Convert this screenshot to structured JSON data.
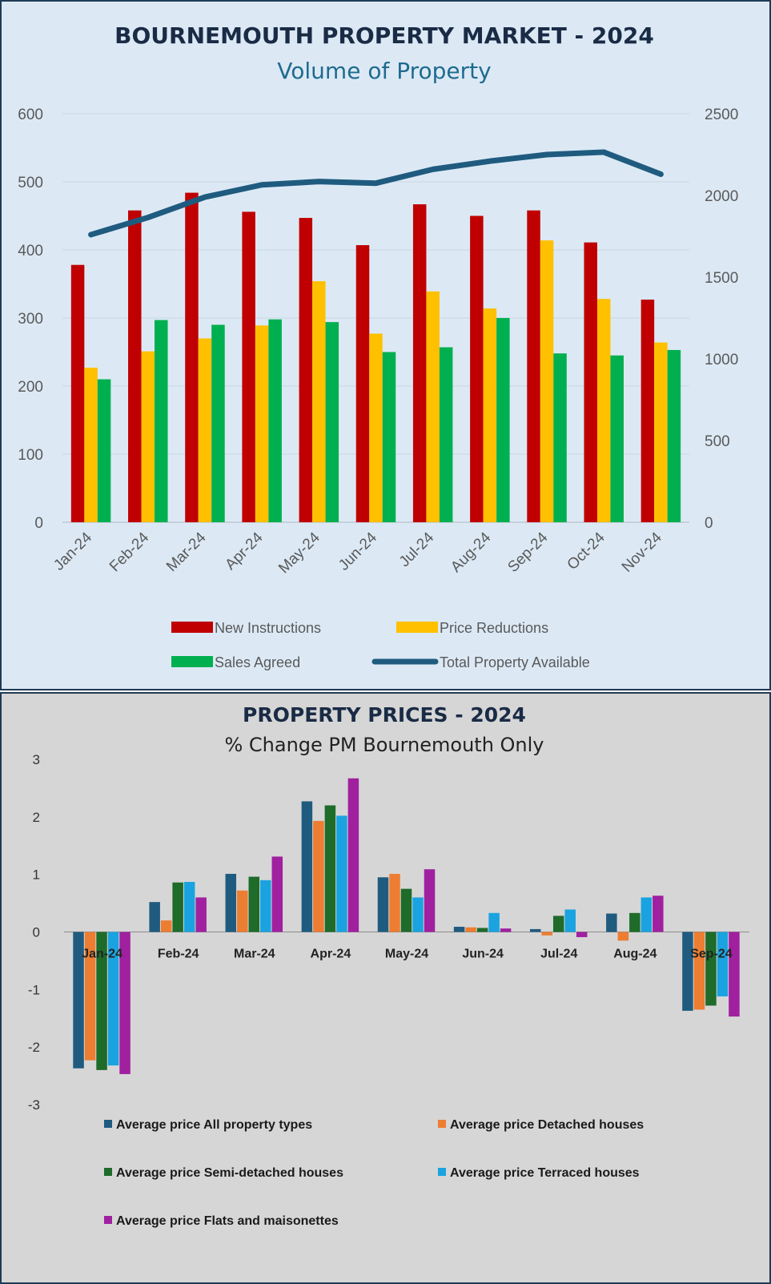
{
  "chart_data": [
    {
      "type": "bar",
      "title": "BOURNEMOUTH PROPERTY MARKET - 2024",
      "subtitle": "Volume of Property",
      "categories": [
        "Jan-24",
        "Feb-24",
        "Mar-24",
        "Apr-24",
        "May-24",
        "Jun-24",
        "Jul-24",
        "Aug-24",
        "Sep-24",
        "Oct-24",
        "Nov-24"
      ],
      "series": [
        {
          "name": "New Instructions",
          "type": "bar",
          "axis": "left",
          "color": "#c00000",
          "values": [
            378,
            458,
            484,
            456,
            447,
            407,
            467,
            450,
            458,
            411,
            327
          ]
        },
        {
          "name": "Price Reductions",
          "type": "bar",
          "axis": "left",
          "color": "#ffc000",
          "values": [
            227,
            251,
            270,
            289,
            354,
            277,
            339,
            314,
            414,
            328,
            264
          ]
        },
        {
          "name": "Sales Agreed",
          "type": "bar",
          "axis": "left",
          "color": "#00b050",
          "values": [
            210,
            297,
            290,
            298,
            294,
            250,
            257,
            300,
            248,
            245,
            253
          ]
        },
        {
          "name": "Total Property Available",
          "type": "line",
          "axis": "right",
          "color": "#1f5b7f",
          "values": [
            1760,
            1865,
            1990,
            2065,
            2085,
            2075,
            2160,
            2210,
            2250,
            2265,
            2130
          ]
        }
      ],
      "yticks": [
        "0",
        "100",
        "200",
        "300",
        "400",
        "500",
        "600"
      ],
      "y2ticks": [
        "0",
        "500",
        "1000",
        "1500",
        "2000",
        "2500"
      ],
      "ylim": [
        0,
        600
      ],
      "y2lim": [
        0,
        2500
      ],
      "grid": true,
      "legend_position": "bottom"
    },
    {
      "type": "bar",
      "title": "PROPERTY PRICES - 2024",
      "subtitle": "% Change PM  Bournemouth Only",
      "categories": [
        "Jan-24",
        "Feb-24",
        "Mar-24",
        "Apr-24",
        "May-24",
        "Jun-24",
        "Jul-24",
        "Aug-24",
        "Sep-24"
      ],
      "series": [
        {
          "name": "Average price All property types",
          "color": "#1f5b7f",
          "values": [
            -2.37,
            0.52,
            1.01,
            2.27,
            0.95,
            0.09,
            0.05,
            0.32,
            -1.37
          ]
        },
        {
          "name": "Average price Detached houses",
          "color": "#ed7d31",
          "values": [
            -2.23,
            0.2,
            0.72,
            1.93,
            1.01,
            0.08,
            -0.06,
            -0.15,
            -1.35
          ]
        },
        {
          "name": "Average price Semi-detached houses",
          "color": "#1e6b2a",
          "values": [
            -2.4,
            0.86,
            0.96,
            2.2,
            0.75,
            0.07,
            0.28,
            0.33,
            -1.28
          ]
        },
        {
          "name": "Average price Terraced houses",
          "color": "#1aa3e0",
          "values": [
            -2.32,
            0.87,
            0.9,
            2.02,
            0.6,
            0.33,
            0.39,
            0.6,
            -1.12
          ]
        },
        {
          "name": "Average price Flats and maisonettes",
          "color": "#a020a0",
          "values": [
            -2.47,
            0.6,
            1.31,
            2.67,
            1.09,
            0.06,
            -0.09,
            0.63,
            -1.47
          ]
        }
      ],
      "yticks": [
        "-3",
        "-2",
        "-1",
        "0",
        "1",
        "2",
        "3"
      ],
      "ylim": [
        -3,
        3
      ],
      "grid": false,
      "legend_position": "bottom"
    }
  ]
}
